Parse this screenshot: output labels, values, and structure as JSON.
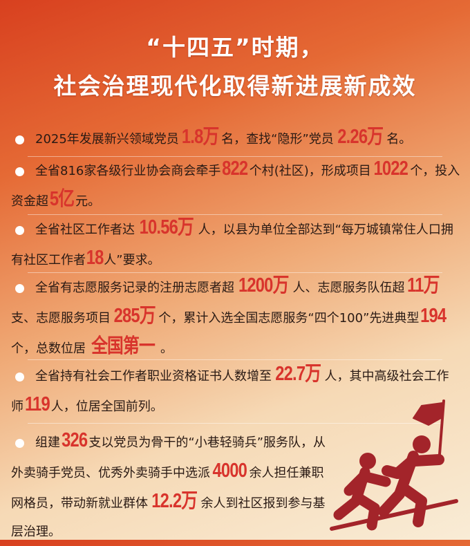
{
  "title": {
    "line1": "“十四五”时期，",
    "line2": "社会治理现代化取得新进展新成效"
  },
  "accent_color": "#d8342c",
  "paragraphs": [
    [
      {
        "t": "2025年发展新兴领域党员"
      },
      {
        "t": "1.8万",
        "hl": true
      },
      {
        "t": "名，查找“隐形”党员"
      },
      {
        "t": "2.26万",
        "hl": true
      },
      {
        "t": "名。"
      }
    ],
    [
      {
        "t": "全省816家各级行业协会商会牵手"
      },
      {
        "t": "822",
        "hl": true
      },
      {
        "t": "个村(社区)，形成项目"
      },
      {
        "t": "1022",
        "hl": true
      },
      {
        "t": "个，投入资金超"
      },
      {
        "t": "5亿",
        "hl": true
      },
      {
        "t": "元。"
      }
    ],
    [
      {
        "t": "全省社区工作者达"
      },
      {
        "t": "10.56万",
        "hl": true
      },
      {
        "t": "人，以县为单位全部达到“每万城镇常住人口拥有社区工作者"
      },
      {
        "t": "18",
        "hl": true
      },
      {
        "t": "人”要求。"
      }
    ],
    [
      {
        "t": "全省有志愿服务记录的注册志愿者超"
      },
      {
        "t": "1200万",
        "hl": true
      },
      {
        "t": "人、志愿服务队伍超"
      },
      {
        "t": "11万",
        "hl": true
      },
      {
        "t": "支、志愿服务项目"
      },
      {
        "t": "285万",
        "hl": true
      },
      {
        "t": "个，累计入选全国志愿服务“四个100”先进典型"
      },
      {
        "t": "194",
        "hl": true
      },
      {
        "t": "个，总数位居"
      },
      {
        "t": "全国第一",
        "hl": true
      },
      {
        "t": "。"
      }
    ],
    [
      {
        "t": "全省持有社会工作者职业资格证书人数增至"
      },
      {
        "t": "22.7万",
        "hl": true
      },
      {
        "t": "人，其中高级社会工作师"
      },
      {
        "t": "119",
        "hl": true
      },
      {
        "t": "人，位居全国前列。"
      }
    ],
    [
      {
        "t": "组建"
      },
      {
        "t": "326",
        "hl": true
      },
      {
        "t": "支以党员为骨干的“小巷轻骑兵”服务队，从外卖骑手党员、优秀外卖骑手中选派"
      },
      {
        "t": "4000",
        "hl": true
      },
      {
        "t": "余人担任兼职网格员，带动新就业群体"
      },
      {
        "t": "12.2万",
        "hl": true
      },
      {
        "t": "余人到社区报到参与基层治理。"
      }
    ]
  ],
  "icons": {
    "bullet": "white-dot-icon",
    "illustration": "runners-with-flag-icon"
  }
}
